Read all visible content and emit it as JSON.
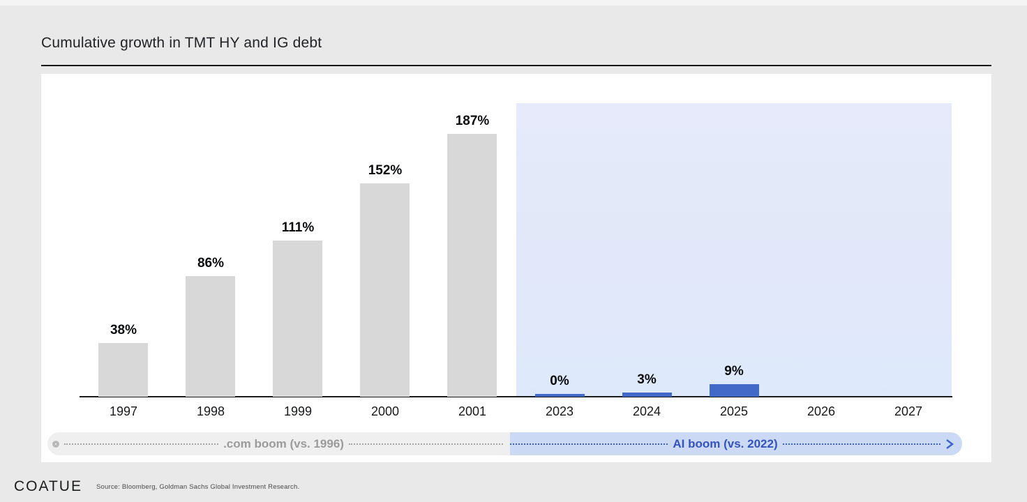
{
  "page": {
    "title": "Cumulative growth in TMT HY and IG debt",
    "footer": {
      "logo": "COATUE",
      "source": "Source: Bloomberg, Goldman Sachs Global Investment Research."
    }
  },
  "chart_data": {
    "type": "bar",
    "title": "Cumulative growth in TMT HY and IG debt",
    "categories": [
      "1997",
      "1998",
      "1999",
      "2000",
      "2001",
      "2023",
      "2024",
      "2025",
      "2026",
      "2027"
    ],
    "series": [
      {
        "name": ".com boom (vs. 1996)",
        "color": "#d8d8d8",
        "values": [
          38,
          86,
          111,
          152,
          187,
          null,
          null,
          null,
          null,
          null
        ]
      },
      {
        "name": "AI boom (vs. 2022)",
        "color": "#4268c8",
        "values": [
          null,
          null,
          null,
          null,
          null,
          0,
          3,
          9,
          null,
          null
        ]
      }
    ],
    "value_labels": [
      "38%",
      "86%",
      "111%",
      "152%",
      "187%",
      "0%",
      "3%",
      "9%",
      "",
      ""
    ],
    "ylabel": "",
    "xlabel": "",
    "ylim": [
      0,
      200
    ],
    "grid": false,
    "legend_position": "none",
    "highlight_region": {
      "start_category": "2023",
      "end_category": "2027",
      "color": "#e3e8f9"
    },
    "era_bands": [
      {
        "label": ".com boom (vs. 1996)",
        "style": "gray",
        "marker": "circle-start"
      },
      {
        "label": "AI boom (vs. 2022)",
        "style": "blue",
        "marker": "arrow-end"
      }
    ]
  }
}
